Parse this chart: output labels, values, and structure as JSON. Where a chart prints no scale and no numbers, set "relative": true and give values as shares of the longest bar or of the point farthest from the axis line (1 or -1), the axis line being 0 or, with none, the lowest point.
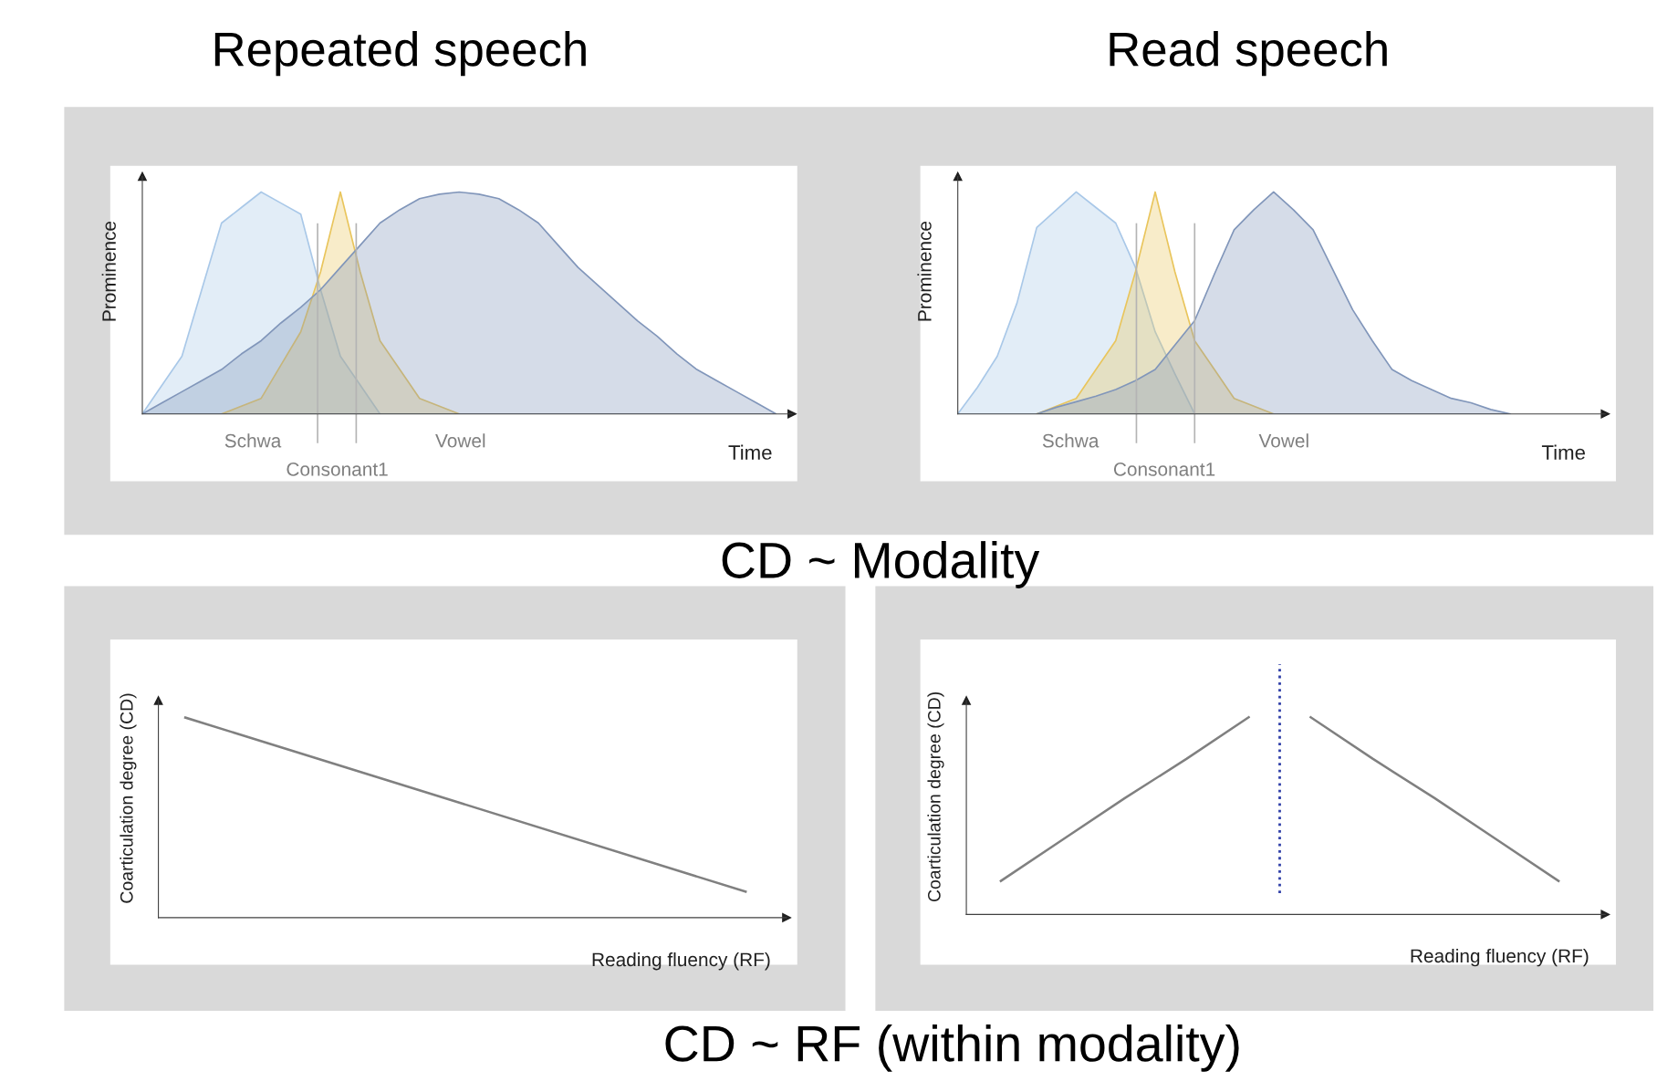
{
  "chart_data": [
    {
      "type": "area",
      "relative": true,
      "title": "Repeated speech",
      "ylabel": "Prominence",
      "xlabel": "Time",
      "categories": [
        null,
        null,
        null,
        null,
        null,
        null,
        null,
        null,
        null,
        null,
        null,
        null,
        null,
        null,
        null,
        null,
        null,
        null,
        null,
        null,
        null,
        null,
        null,
        null,
        null,
        null,
        null,
        null,
        null,
        null,
        null,
        null,
        null
      ],
      "series": [
        {
          "color": "#a9c8e8",
          "values": [
            0,
            0.13,
            0.26,
            0.56,
            0.86,
            0.93,
            1.0,
            0.95,
            0.9,
            0.56,
            0.26,
            0.13,
            0,
            null,
            null,
            null,
            null,
            null,
            null,
            null,
            null,
            null,
            null,
            null,
            null,
            null,
            null,
            null,
            null,
            null,
            null,
            null,
            null
          ]
        },
        {
          "color": "#e9c55c",
          "values": [
            null,
            null,
            null,
            null,
            0,
            0.035,
            0.07,
            0.22,
            0.37,
            0.64,
            1.0,
            0.64,
            0.33,
            0.2,
            0.07,
            0.035,
            0,
            null,
            null,
            null,
            null,
            null,
            null,
            null,
            null,
            null,
            null,
            null,
            null,
            null,
            null,
            null,
            null
          ]
        },
        {
          "color": "#8196ba",
          "values": [
            0,
            0.05,
            0.1,
            0.15,
            0.2,
            0.27,
            0.33,
            0.41,
            0.48,
            0.56,
            0.66,
            0.76,
            0.86,
            0.92,
            0.97,
            0.99,
            1.0,
            0.99,
            0.97,
            0.92,
            0.86,
            0.76,
            0.66,
            0.58,
            0.5,
            0.42,
            0.35,
            0.27,
            0.2,
            0.15,
            0.1,
            0.05,
            0
          ]
        }
      ],
      "annotations": [
        "Schwa",
        "Consonant1",
        "Vowel"
      ]
    },
    {
      "type": "area",
      "relative": true,
      "title": "Read speech",
      "ylabel": "Prominence",
      "xlabel": "Time",
      "categories": [
        null,
        null,
        null,
        null,
        null,
        null,
        null,
        null,
        null,
        null,
        null,
        null,
        null,
        null,
        null,
        null,
        null,
        null,
        null,
        null,
        null,
        null,
        null,
        null,
        null,
        null,
        null,
        null,
        null,
        null,
        null,
        null,
        null
      ],
      "series": [
        {
          "color": "#a9c8e8",
          "values": [
            0,
            0.12,
            0.26,
            0.5,
            0.84,
            0.92,
            1.0,
            0.93,
            0.86,
            0.66,
            0.37,
            0.18,
            0,
            null,
            null,
            null,
            null,
            null,
            null,
            null,
            null,
            null,
            null,
            null,
            null,
            null,
            null,
            null,
            null,
            null,
            null,
            null,
            null
          ]
        },
        {
          "color": "#e9c55c",
          "values": [
            null,
            null,
            null,
            null,
            0,
            0.035,
            0.07,
            0.2,
            0.33,
            0.64,
            1.0,
            0.64,
            0.33,
            0.2,
            0.07,
            0.035,
            0,
            null,
            null,
            null,
            null,
            null,
            null,
            null,
            null,
            null,
            null,
            null,
            null,
            null,
            null,
            null,
            null
          ]
        },
        {
          "color": "#8196ba",
          "values": [
            null,
            null,
            null,
            null,
            0,
            0.03,
            0.055,
            0.08,
            0.11,
            0.15,
            0.2,
            0.31,
            0.42,
            0.63,
            0.83,
            0.92,
            1.0,
            0.92,
            0.83,
            0.65,
            0.47,
            0.33,
            0.2,
            0.15,
            0.11,
            0.07,
            0.05,
            0.02,
            0,
            null,
            null,
            null,
            null
          ]
        }
      ],
      "annotations": [
        "Schwa",
        "Consonant1",
        "Vowel"
      ]
    },
    {
      "type": "line",
      "relative": true,
      "ylabel": "Coarticulation degree (CD)",
      "xlabel": "Reading fluency (RF)",
      "categories": [
        null,
        null
      ],
      "series": [
        {
          "color": "#808080",
          "values": [
            1.0,
            0.13
          ]
        }
      ]
    },
    {
      "type": "line",
      "relative": true,
      "ylabel": "Coarticulation degree (CD)",
      "xlabel": "Reading fluency (RF)",
      "categories": [
        null,
        null,
        null,
        null,
        null,
        null,
        null,
        null,
        null,
        null
      ],
      "series": [
        {
          "color": "#808080",
          "values": [
            0.17,
            0.38,
            0.59,
            0.79,
            1.0,
            null,
            null,
            null,
            null,
            null
          ]
        },
        {
          "color": "#808080",
          "values": [
            null,
            null,
            null,
            null,
            null,
            1.0,
            0.79,
            0.59,
            0.38,
            0.17
          ]
        }
      ]
    },
    {
      "type": "other",
      "annotations": [
        "CD ~ Modality",
        "CD ~ RF (within modality)"
      ]
    }
  ]
}
